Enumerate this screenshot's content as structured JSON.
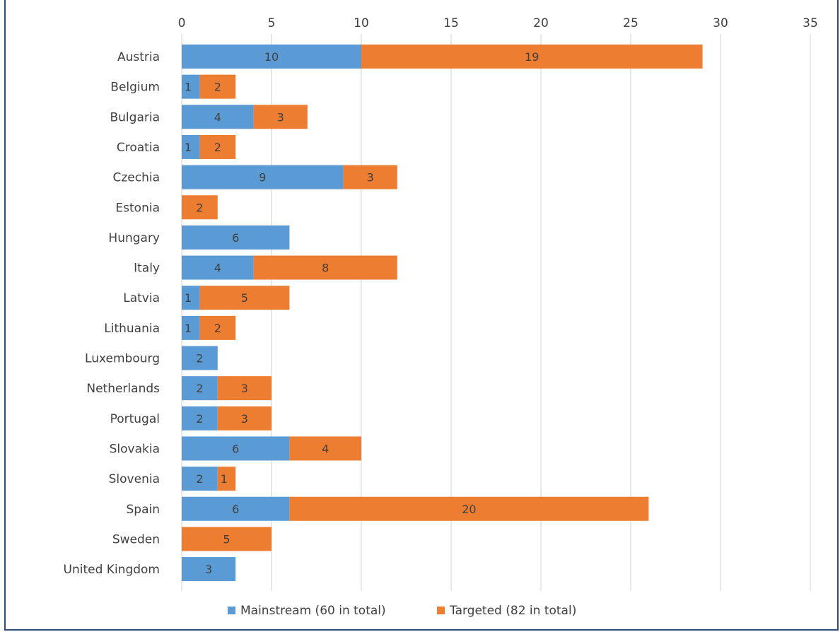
{
  "chart_data": {
    "type": "bar",
    "orientation": "horizontal",
    "stacked": true,
    "categories": [
      "Austria",
      "Belgium",
      "Bulgaria",
      "Croatia",
      "Czechia",
      "Estonia",
      "Hungary",
      "Italy",
      "Latvia",
      "Lithuania",
      "Luxembourg",
      "Netherlands",
      "Portugal",
      "Slovakia",
      "Slovenia",
      "Spain",
      "Sweden",
      "United Kingdom"
    ],
    "series": [
      {
        "name": "Mainstream (60 in total)",
        "color": "#5b9bd5",
        "values": [
          10,
          1,
          4,
          1,
          9,
          0,
          6,
          4,
          1,
          1,
          2,
          2,
          2,
          6,
          2,
          6,
          0,
          3
        ]
      },
      {
        "name": "Targeted (82 in total)",
        "color": "#ed7d31",
        "values": [
          19,
          2,
          3,
          2,
          3,
          2,
          0,
          8,
          5,
          2,
          0,
          3,
          3,
          4,
          1,
          20,
          5,
          0
        ]
      }
    ],
    "xlim": [
      0,
      35
    ],
    "xticks": [
      0,
      5,
      10,
      15,
      20,
      25,
      30,
      35
    ],
    "axis_position": "top",
    "grid": true,
    "legend_position": "bottom",
    "title": "",
    "xlabel": "",
    "ylabel": ""
  }
}
